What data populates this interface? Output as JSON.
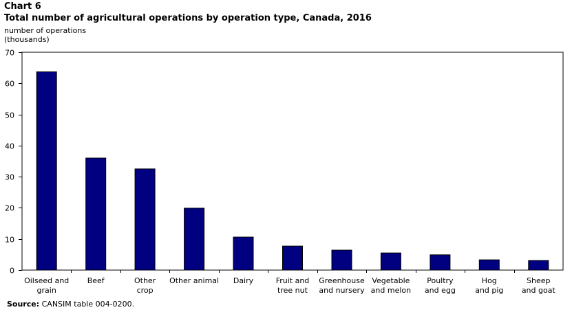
{
  "header": {
    "chart_label": "Chart 6",
    "title": "Total number of agricultural operations by operation type, Canada, 2016"
  },
  "axis": {
    "ylabel_line1": "number of operations",
    "ylabel_line2": "(thousands)"
  },
  "source": {
    "label": "Source:",
    "text": "CANSIM table 004-0200."
  },
  "chart_data": {
    "type": "bar",
    "title": "Total number of agricultural operations by operation type, Canada, 2016",
    "ylabel": "number of operations (thousands)",
    "xlabel": "",
    "ylim": [
      0,
      70
    ],
    "yticks": [
      0,
      10,
      20,
      30,
      40,
      50,
      60,
      70
    ],
    "categories": [
      [
        "Oilseed and",
        "grain"
      ],
      [
        "Beef"
      ],
      [
        "Other",
        "crop"
      ],
      [
        "Other animal"
      ],
      [
        "Dairy"
      ],
      [
        "Fruit and",
        "tree nut"
      ],
      [
        "Greenhouse",
        "and nursery"
      ],
      [
        "Vegetable",
        "and melon"
      ],
      [
        "Poultry",
        "and egg"
      ],
      [
        "Hog",
        "and pig"
      ],
      [
        "Sheep",
        "and goat"
      ]
    ],
    "values": [
      63.7,
      36.0,
      32.5,
      19.9,
      10.6,
      7.7,
      6.4,
      5.5,
      4.9,
      3.3,
      3.1
    ],
    "bar_color": "#000080",
    "grid": false
  }
}
